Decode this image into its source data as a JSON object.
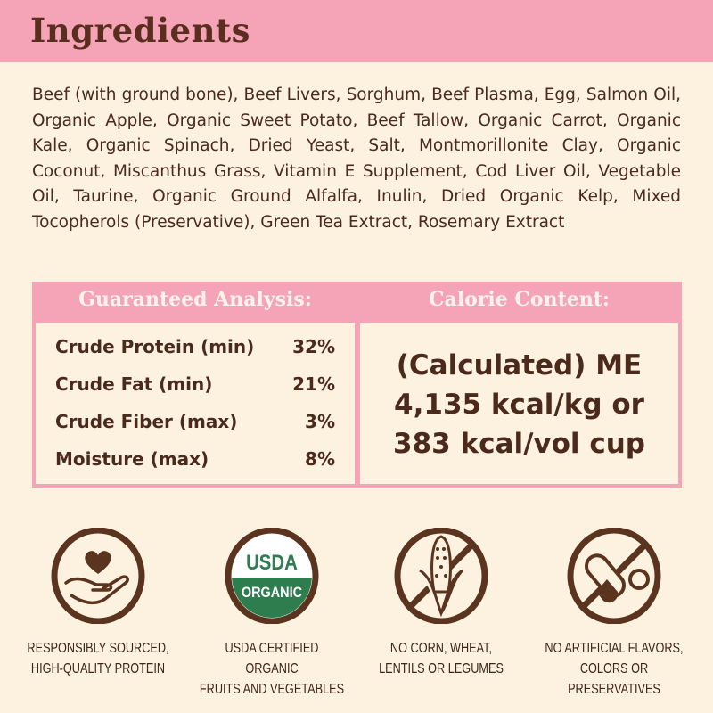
{
  "header": {
    "title": "Ingredients"
  },
  "ingredients": "Beef (with ground bone), Beef Livers, Sorghum, Beef Plasma, Egg, Salmon Oil, Organic Apple, Organic Sweet Potato, Beef Tallow, Organic Carrot, Organic Kale, Organic Spinach, Dried Yeast, Salt, Montmorillonite Clay, Organic Coconut, Miscanthus Grass, Vitamin E Supplement, Cod Liver Oil, Vegetable Oil, Taurine, Organic Ground Alfalfa, Inulin, Dried Organic Kelp, Mixed Tocopherols (Preservative), Green Tea Extract, Rosemary Extract",
  "analysis": {
    "title": "Guaranteed Analysis:",
    "rows": [
      {
        "label": "Crude Protein (min)",
        "value": "32%"
      },
      {
        "label": "Crude Fat (min)",
        "value": "21%"
      },
      {
        "label": "Crude Fiber (max)",
        "value": "3%"
      },
      {
        "label": "Moisture (max)",
        "value": "8%"
      }
    ]
  },
  "calorie": {
    "title": "Calorie Content:",
    "lines": [
      "(Calculated) ME",
      "4,135 kcal/kg or",
      "383 kcal/vol cup"
    ]
  },
  "badges": [
    {
      "icon": "heart-in-hand-icon",
      "line1": "RESPONSIBLY SOURCED,",
      "line2": "HIGH-QUALITY PROTEIN"
    },
    {
      "icon": "usda-organic-seal",
      "seal_top": "USDA",
      "seal_bottom": "ORGANIC",
      "line1": "USDA CERTIFIED ORGANIC",
      "line2": "FRUITS AND VEGETABLES"
    },
    {
      "icon": "no-corn-icon",
      "line1": "NO CORN, WHEAT,",
      "line2": "LENTILS OR LEGUMES"
    },
    {
      "icon": "no-pills-icon",
      "line1": "NO ARTIFICIAL FLAVORS,",
      "line2": "COLORS OR PRESERVATIVES"
    }
  ],
  "colors": {
    "pink": "#f5a4b7",
    "background": "#fdf2df",
    "brown": "#4b2a1c",
    "usda_green": "#2e7d4f"
  }
}
